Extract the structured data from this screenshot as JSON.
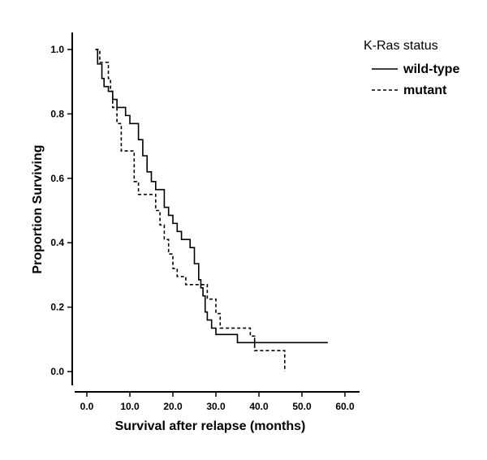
{
  "chart_data": {
    "type": "line",
    "step": true,
    "xlabel": "Survival after relapse (months)",
    "ylabel": "Proportion Surviving",
    "xlim": [
      -2,
      63
    ],
    "ylim": [
      -0.05,
      1.05
    ],
    "x_ticks": [
      "0.0",
      "10.0",
      "20.0",
      "30.0",
      "40.0",
      "50.0",
      "60.0"
    ],
    "y_ticks": [
      "0.0",
      "0.2",
      "0.4",
      "0.6",
      "0.8",
      "1.0"
    ],
    "grid": false,
    "legend": {
      "title": "K-Ras status",
      "position": "top-right",
      "entries": [
        "wild-type",
        "mutant"
      ]
    },
    "series": [
      {
        "name": "wild-type",
        "style": "solid",
        "color": "#000000",
        "points": [
          [
            2.0,
            1.0
          ],
          [
            2.5,
            0.955
          ],
          [
            3.5,
            0.91
          ],
          [
            4.0,
            0.885
          ],
          [
            5.0,
            0.87
          ],
          [
            6.0,
            0.845
          ],
          [
            7.0,
            0.82
          ],
          [
            9.0,
            0.795
          ],
          [
            10.0,
            0.77
          ],
          [
            12.0,
            0.72
          ],
          [
            13.0,
            0.67
          ],
          [
            14.0,
            0.62
          ],
          [
            15.0,
            0.59
          ],
          [
            16.0,
            0.565
          ],
          [
            18.0,
            0.51
          ],
          [
            19.0,
            0.485
          ],
          [
            20.0,
            0.46
          ],
          [
            21.0,
            0.435
          ],
          [
            22.0,
            0.41
          ],
          [
            24.0,
            0.385
          ],
          [
            25.0,
            0.335
          ],
          [
            26.0,
            0.285
          ],
          [
            26.5,
            0.26
          ],
          [
            27.0,
            0.235
          ],
          [
            27.5,
            0.185
          ],
          [
            28.0,
            0.16
          ],
          [
            29.0,
            0.135
          ],
          [
            30.0,
            0.115
          ],
          [
            35.0,
            0.09
          ],
          [
            56.0,
            0.09
          ]
        ],
        "censored": [
          39.0
        ]
      },
      {
        "name": "mutant",
        "style": "dashed",
        "color": "#000000",
        "points": [
          [
            2.0,
            1.0
          ],
          [
            3.0,
            0.96
          ],
          [
            5.0,
            0.91
          ],
          [
            5.5,
            0.87
          ],
          [
            6.0,
            0.82
          ],
          [
            7.0,
            0.77
          ],
          [
            8.0,
            0.685
          ],
          [
            11.0,
            0.59
          ],
          [
            12.0,
            0.55
          ],
          [
            16.0,
            0.5
          ],
          [
            17.0,
            0.455
          ],
          [
            18.0,
            0.41
          ],
          [
            19.0,
            0.365
          ],
          [
            20.0,
            0.32
          ],
          [
            21.0,
            0.295
          ],
          [
            23.0,
            0.27
          ],
          [
            28.0,
            0.225
          ],
          [
            30.0,
            0.18
          ],
          [
            31.0,
            0.135
          ],
          [
            38.0,
            0.11
          ],
          [
            39.0,
            0.065
          ],
          [
            46.0,
            0.065
          ],
          [
            46.0,
            0.0
          ]
        ],
        "censored": []
      }
    ]
  }
}
